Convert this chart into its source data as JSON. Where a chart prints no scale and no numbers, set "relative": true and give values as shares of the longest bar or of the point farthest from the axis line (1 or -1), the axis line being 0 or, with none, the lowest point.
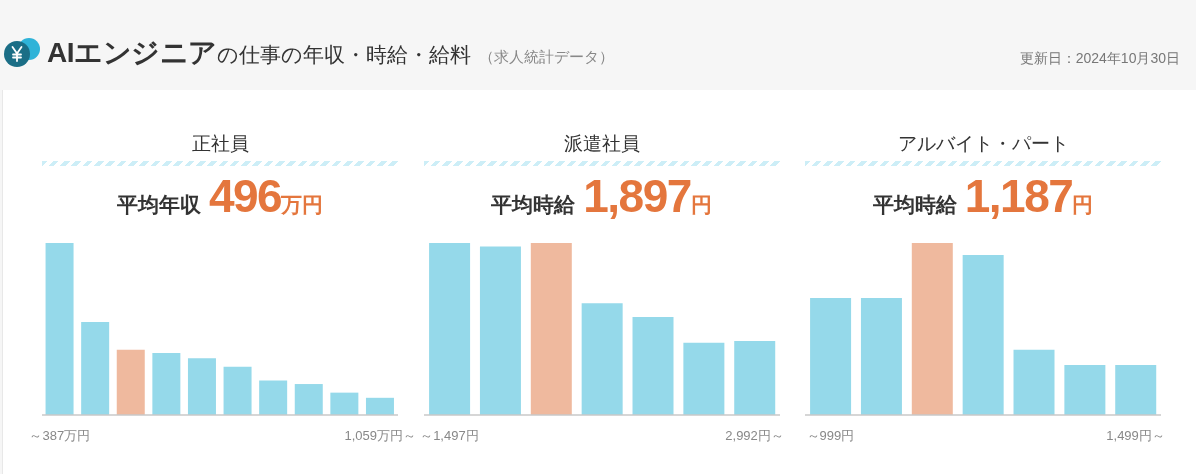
{
  "chart_data": [
    {
      "type": "other",
      "title": "AIエンジニアの仕事の年収・時給・給料",
      "subtitle": "（求人統計データ）",
      "annotations": [
        "更新日：2024年10月30日"
      ]
    },
    {
      "type": "bar",
      "title": "正社員",
      "subtitle": "平均年収496万円",
      "relative": true,
      "categories": [
        "～387万円",
        null,
        null,
        null,
        null,
        null,
        null,
        null,
        null,
        "1,059万円～"
      ],
      "values": [
        1,
        0.54,
        0.38,
        0.36,
        0.33,
        0.28,
        0.2,
        0.18,
        0.13,
        0.1
      ],
      "colors": [
        "#95d9ea",
        "#95d9ea",
        "#efb99e",
        "#95d9ea",
        "#95d9ea",
        "#95d9ea",
        "#95d9ea",
        "#95d9ea",
        "#95d9ea",
        "#95d9ea"
      ]
    },
    {
      "type": "bar",
      "title": "派遣社員",
      "subtitle": "平均時給1,897円",
      "relative": true,
      "categories": [
        "～1,497円",
        null,
        null,
        null,
        null,
        null,
        "2,992円～"
      ],
      "values": [
        1,
        0.98,
        1,
        0.65,
        0.57,
        0.42,
        0.43
      ],
      "colors": [
        "#95d9ea",
        "#95d9ea",
        "#efb99e",
        "#95d9ea",
        "#95d9ea",
        "#95d9ea",
        "#95d9ea"
      ]
    },
    {
      "type": "bar",
      "title": "アルバイト・パート",
      "subtitle": "平均時給1,187円",
      "relative": true,
      "categories": [
        "～999円",
        null,
        null,
        null,
        null,
        null,
        "1,499円～"
      ],
      "values": [
        0.68,
        0.68,
        1,
        0.93,
        0.38,
        0.29,
        0.29
      ],
      "colors": [
        "#95d9ea",
        "#95d9ea",
        "#efb99e",
        "#95d9ea",
        "#95d9ea",
        "#95d9ea",
        "#95d9ea"
      ]
    }
  ]
}
